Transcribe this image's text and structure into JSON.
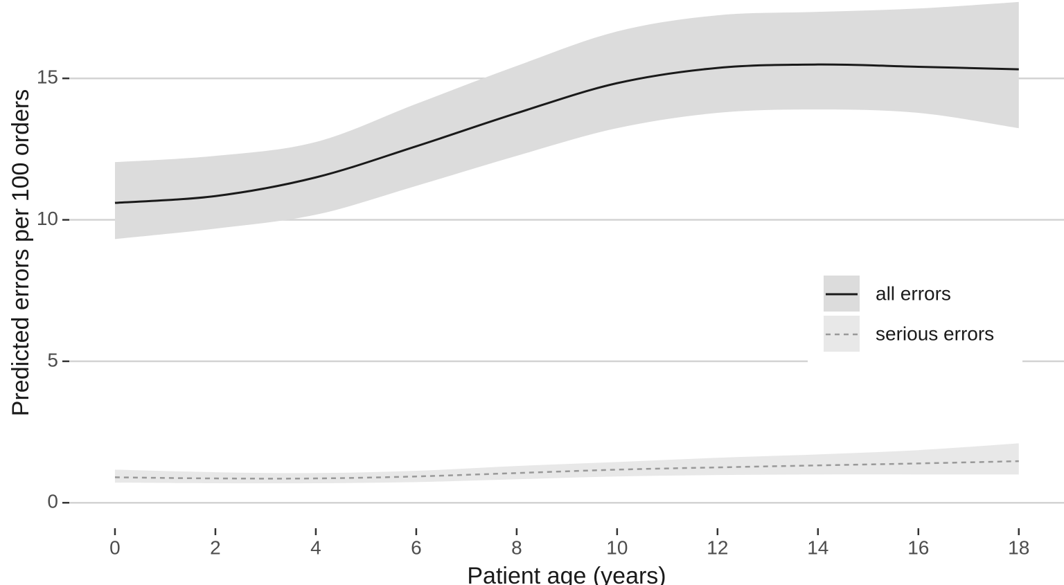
{
  "chart_data": {
    "type": "line",
    "x_label": "Patient age (years)",
    "y_label": "Predicted errors per 100 orders",
    "x": [
      0,
      2,
      4,
      6,
      8,
      10,
      12,
      14,
      16,
      18
    ],
    "series": [
      {
        "name": "all errors",
        "color": "#1a1a1a",
        "dash": false,
        "band_color": "#dcdcdc",
        "values": [
          10.6,
          10.84,
          11.5,
          12.6,
          13.77,
          14.83,
          15.37,
          15.49,
          15.41,
          15.32
        ],
        "upper": [
          12.04,
          12.26,
          12.75,
          14.1,
          15.44,
          16.66,
          17.23,
          17.35,
          17.47,
          17.7
        ],
        "lower": [
          9.32,
          9.69,
          10.18,
          11.2,
          12.26,
          13.24,
          13.78,
          13.9,
          13.78,
          13.24
        ]
      },
      {
        "name": "serious errors",
        "color": "#999999",
        "dash": true,
        "band_color": "#e8e8e8",
        "values": [
          0.9,
          0.86,
          0.86,
          0.93,
          1.05,
          1.17,
          1.25,
          1.32,
          1.39,
          1.47
        ],
        "upper": [
          1.17,
          1.08,
          1.05,
          1.13,
          1.3,
          1.44,
          1.59,
          1.71,
          1.86,
          2.1
        ],
        "lower": [
          0.71,
          0.69,
          0.69,
          0.73,
          0.83,
          0.93,
          0.98,
          1.0,
          1.0,
          1.0
        ]
      }
    ],
    "xlim": [
      -0.91,
      18.9
    ],
    "ylim": [
      -0.46,
      17.77
    ],
    "xticks": [
      0,
      2,
      4,
      6,
      8,
      10,
      12,
      14,
      16,
      18
    ],
    "yticks": [
      0,
      5,
      10,
      15
    ],
    "grid": true,
    "legend": "right"
  }
}
